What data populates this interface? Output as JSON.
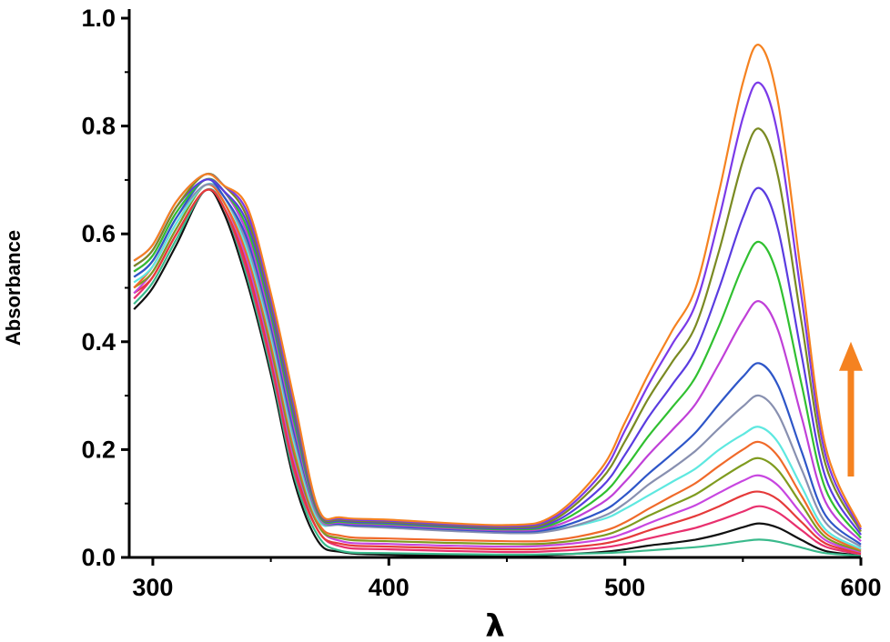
{
  "chart_data": {
    "type": "line",
    "title": "",
    "xlabel": "λ",
    "ylabel": "Absorbance",
    "xlim": [
      290,
      600
    ],
    "ylim": [
      0,
      1.0
    ],
    "xticks": [
      "300",
      "400",
      "500",
      "600"
    ],
    "yticks": [
      "0.0",
      "0.2",
      "0.4",
      "0.6",
      "0.8",
      "1.0"
    ],
    "grid": false,
    "legend": "none",
    "annotation": {
      "type": "arrow",
      "direction": "up",
      "color": "#f58220"
    },
    "x": [
      292,
      300,
      310,
      322,
      330,
      340,
      350,
      360,
      370,
      380,
      400,
      450,
      470,
      490,
      500,
      510,
      520,
      530,
      540,
      550,
      557,
      565,
      575,
      585,
      600
    ],
    "series": [
      {
        "color": "#111111",
        "values": [
          0.46,
          0.5,
          0.58,
          0.68,
          0.64,
          0.51,
          0.34,
          0.14,
          0.03,
          0.01,
          0.005,
          0.003,
          0.005,
          0.01,
          0.015,
          0.022,
          0.027,
          0.033,
          0.043,
          0.056,
          0.063,
          0.055,
          0.032,
          0.012,
          0.004
        ]
      },
      {
        "color": "#3aba8c",
        "values": [
          0.47,
          0.51,
          0.59,
          0.68,
          0.65,
          0.52,
          0.35,
          0.15,
          0.04,
          0.012,
          0.008,
          0.005,
          0.006,
          0.008,
          0.01,
          0.013,
          0.016,
          0.019,
          0.024,
          0.03,
          0.033,
          0.029,
          0.018,
          0.008,
          0.003
        ]
      },
      {
        "color": "#e8306e",
        "values": [
          0.48,
          0.52,
          0.6,
          0.68,
          0.65,
          0.53,
          0.36,
          0.16,
          0.05,
          0.02,
          0.015,
          0.01,
          0.012,
          0.018,
          0.025,
          0.035,
          0.045,
          0.055,
          0.069,
          0.085,
          0.095,
          0.083,
          0.05,
          0.02,
          0.006
        ]
      },
      {
        "color": "#e53a3a",
        "values": [
          0.49,
          0.52,
          0.6,
          0.68,
          0.65,
          0.54,
          0.37,
          0.17,
          0.05,
          0.025,
          0.02,
          0.015,
          0.017,
          0.025,
          0.035,
          0.05,
          0.063,
          0.077,
          0.095,
          0.115,
          0.122,
          0.107,
          0.065,
          0.026,
          0.008
        ]
      },
      {
        "color": "#c846e0",
        "values": [
          0.49,
          0.53,
          0.61,
          0.69,
          0.66,
          0.55,
          0.38,
          0.18,
          0.06,
          0.03,
          0.025,
          0.02,
          0.023,
          0.033,
          0.045,
          0.063,
          0.08,
          0.097,
          0.12,
          0.142,
          0.152,
          0.133,
          0.08,
          0.032,
          0.01
        ]
      },
      {
        "color": "#7f9b1f",
        "values": [
          0.5,
          0.53,
          0.61,
          0.69,
          0.66,
          0.56,
          0.39,
          0.19,
          0.06,
          0.035,
          0.03,
          0.025,
          0.027,
          0.04,
          0.055,
          0.077,
          0.097,
          0.117,
          0.145,
          0.172,
          0.184,
          0.161,
          0.097,
          0.038,
          0.012
        ]
      },
      {
        "color": "#f06a2a",
        "values": [
          0.5,
          0.54,
          0.62,
          0.69,
          0.66,
          0.56,
          0.4,
          0.2,
          0.065,
          0.04,
          0.035,
          0.03,
          0.032,
          0.048,
          0.065,
          0.09,
          0.114,
          0.138,
          0.17,
          0.2,
          0.214,
          0.187,
          0.113,
          0.045,
          0.014
        ]
      },
      {
        "color": "#5ee8e0",
        "values": [
          0.51,
          0.54,
          0.62,
          0.69,
          0.67,
          0.57,
          0.41,
          0.21,
          0.07,
          0.065,
          0.06,
          0.05,
          0.052,
          0.07,
          0.09,
          0.115,
          0.14,
          0.165,
          0.2,
          0.228,
          0.242,
          0.213,
          0.13,
          0.052,
          0.016
        ]
      },
      {
        "color": "#8890b0",
        "values": [
          0.52,
          0.55,
          0.63,
          0.69,
          0.67,
          0.58,
          0.42,
          0.22,
          0.075,
          0.06,
          0.055,
          0.045,
          0.05,
          0.075,
          0.1,
          0.135,
          0.165,
          0.198,
          0.24,
          0.28,
          0.3,
          0.265,
          0.162,
          0.065,
          0.02
        ]
      },
      {
        "color": "#2e56c8",
        "values": [
          0.52,
          0.55,
          0.63,
          0.7,
          0.67,
          0.59,
          0.43,
          0.23,
          0.08,
          0.062,
          0.058,
          0.048,
          0.054,
          0.085,
          0.115,
          0.155,
          0.192,
          0.232,
          0.285,
          0.335,
          0.36,
          0.318,
          0.195,
          0.078,
          0.024
        ]
      },
      {
        "color": "#c040d8",
        "values": [
          0.53,
          0.56,
          0.64,
          0.7,
          0.68,
          0.6,
          0.44,
          0.24,
          0.08,
          0.064,
          0.06,
          0.05,
          0.058,
          0.1,
          0.14,
          0.19,
          0.236,
          0.285,
          0.36,
          0.44,
          0.475,
          0.42,
          0.258,
          0.103,
          0.03
        ]
      },
      {
        "color": "#30c030",
        "values": [
          0.53,
          0.56,
          0.64,
          0.7,
          0.68,
          0.61,
          0.45,
          0.25,
          0.082,
          0.066,
          0.062,
          0.052,
          0.062,
          0.115,
          0.165,
          0.225,
          0.278,
          0.335,
          0.43,
          0.54,
          0.585,
          0.518,
          0.318,
          0.127,
          0.036
        ]
      },
      {
        "color": "#5a3ce0",
        "values": [
          0.54,
          0.57,
          0.65,
          0.7,
          0.68,
          0.62,
          0.46,
          0.26,
          0.085,
          0.068,
          0.064,
          0.054,
          0.066,
          0.13,
          0.19,
          0.26,
          0.32,
          0.385,
          0.5,
          0.63,
          0.685,
          0.607,
          0.372,
          0.149,
          0.042
        ]
      },
      {
        "color": "#7a8a22",
        "values": [
          0.54,
          0.57,
          0.65,
          0.71,
          0.69,
          0.63,
          0.47,
          0.27,
          0.087,
          0.07,
          0.066,
          0.056,
          0.07,
          0.145,
          0.215,
          0.295,
          0.362,
          0.43,
          0.57,
          0.735,
          0.795,
          0.705,
          0.432,
          0.173,
          0.048
        ]
      },
      {
        "color": "#7b3ae8",
        "values": [
          0.55,
          0.58,
          0.66,
          0.71,
          0.69,
          0.64,
          0.48,
          0.28,
          0.09,
          0.072,
          0.068,
          0.058,
          0.074,
          0.155,
          0.235,
          0.32,
          0.395,
          0.47,
          0.63,
          0.815,
          0.88,
          0.78,
          0.478,
          0.19,
          0.052
        ]
      },
      {
        "color": "#f58220",
        "values": [
          0.55,
          0.58,
          0.66,
          0.71,
          0.69,
          0.65,
          0.49,
          0.29,
          0.092,
          0.074,
          0.07,
          0.06,
          0.078,
          0.165,
          0.25,
          0.34,
          0.42,
          0.5,
          0.68,
          0.88,
          0.95,
          0.842,
          0.516,
          0.206,
          0.056
        ]
      }
    ]
  }
}
